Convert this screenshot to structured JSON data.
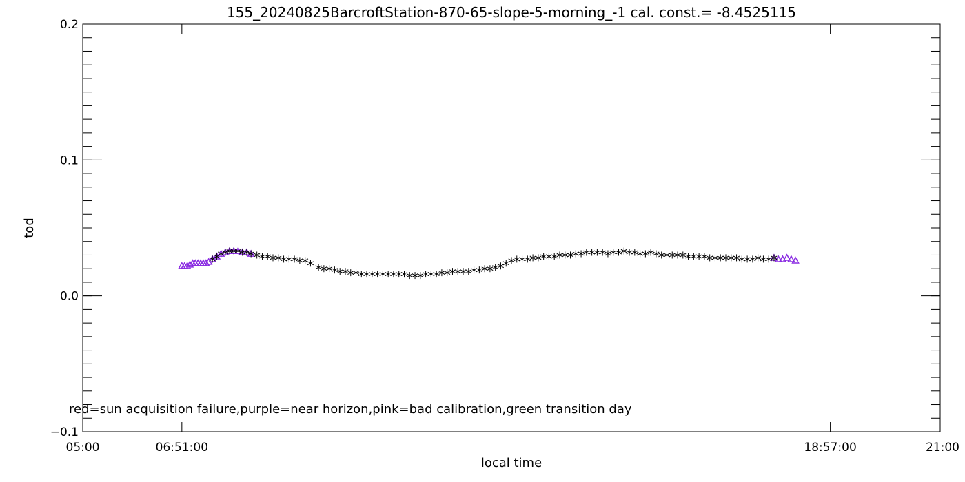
{
  "chart_data": {
    "type": "scatter",
    "title": "155_20240825BarcroftStation-870-65-slope-5-morning_-1 cal. const.= -8.4525115",
    "xlabel": "local time",
    "ylabel": "tod",
    "note": "red=sun acquisition failure,purple=near horizon,pink=bad calibration,green transition day",
    "xlim": [
      5.0,
      21.0
    ],
    "ylim": [
      -0.1,
      0.2
    ],
    "x_ticks": [
      {
        "value": 5.0,
        "label": "05:00"
      },
      {
        "value": 6.85,
        "label": "06:51:00"
      },
      {
        "value": 18.95,
        "label": "18:57:00"
      },
      {
        "value": 21.0,
        "label": "21:00"
      }
    ],
    "y_ticks": [
      {
        "value": -0.1,
        "label": "−0.1"
      },
      {
        "value": 0.0,
        "label": "0.0"
      },
      {
        "value": 0.1,
        "label": "0.1"
      },
      {
        "value": 0.2,
        "label": "0.2"
      }
    ],
    "reference_line": {
      "y": 0.03,
      "x_start": 6.85,
      "x_end": 18.95,
      "color": "#000000"
    },
    "colors": {
      "normal": "#000000",
      "near_horizon": "#8a2be2"
    },
    "series": [
      {
        "marker": "triangle",
        "color": "#8a2be2",
        "x": [
          6.85,
          6.9,
          6.95,
          7.0,
          7.05,
          7.1,
          7.15,
          7.2,
          7.25,
          7.3,
          7.35,
          7.42,
          7.5,
          7.58,
          7.66,
          7.74,
          7.82,
          7.9,
          7.98,
          8.06,
          8.14,
          17.9,
          17.98,
          18.06,
          18.14,
          18.22,
          18.3
        ],
        "y": [
          0.022,
          0.022,
          0.022,
          0.023,
          0.024,
          0.024,
          0.024,
          0.024,
          0.024,
          0.024,
          0.025,
          0.027,
          0.029,
          0.031,
          0.032,
          0.033,
          0.033,
          0.033,
          0.032,
          0.032,
          0.031,
          0.028,
          0.027,
          0.027,
          0.028,
          0.027,
          0.026
        ]
      },
      {
        "marker": "asterisk",
        "color": "#000000",
        "x": [
          7.42,
          7.5,
          7.58,
          7.66,
          7.74,
          7.82,
          7.9,
          7.98,
          8.06,
          8.14,
          8.25,
          8.35,
          8.45,
          8.55,
          8.65,
          8.75,
          8.85,
          8.95,
          9.05,
          9.15,
          9.25,
          9.4,
          9.5,
          9.6,
          9.7,
          9.8,
          9.9,
          10.0,
          10.1,
          10.2,
          10.3,
          10.4,
          10.5,
          10.6,
          10.7,
          10.8,
          10.9,
          11.0,
          11.1,
          11.2,
          11.3,
          11.4,
          11.5,
          11.6,
          11.7,
          11.8,
          11.9,
          12.0,
          12.1,
          12.2,
          12.3,
          12.4,
          12.5,
          12.6,
          12.7,
          12.8,
          12.9,
          13.0,
          13.1,
          13.2,
          13.3,
          13.4,
          13.5,
          13.6,
          13.7,
          13.8,
          13.9,
          14.0,
          14.1,
          14.2,
          14.3,
          14.4,
          14.5,
          14.6,
          14.7,
          14.8,
          14.9,
          15.0,
          15.1,
          15.2,
          15.3,
          15.4,
          15.5,
          15.6,
          15.7,
          15.8,
          15.9,
          16.0,
          16.1,
          16.2,
          16.3,
          16.4,
          16.5,
          16.6,
          16.7,
          16.8,
          16.9,
          17.0,
          17.1,
          17.2,
          17.3,
          17.4,
          17.5,
          17.6,
          17.7,
          17.8,
          17.9
        ],
        "y": [
          0.027,
          0.029,
          0.031,
          0.032,
          0.033,
          0.033,
          0.033,
          0.032,
          0.032,
          0.031,
          0.03,
          0.029,
          0.029,
          0.028,
          0.028,
          0.027,
          0.027,
          0.027,
          0.026,
          0.026,
          0.024,
          0.021,
          0.02,
          0.02,
          0.019,
          0.018,
          0.018,
          0.017,
          0.017,
          0.016,
          0.016,
          0.016,
          0.016,
          0.016,
          0.016,
          0.016,
          0.016,
          0.016,
          0.015,
          0.015,
          0.015,
          0.016,
          0.016,
          0.016,
          0.017,
          0.017,
          0.018,
          0.018,
          0.018,
          0.018,
          0.019,
          0.019,
          0.02,
          0.02,
          0.021,
          0.022,
          0.024,
          0.026,
          0.027,
          0.027,
          0.027,
          0.028,
          0.028,
          0.029,
          0.029,
          0.029,
          0.03,
          0.03,
          0.03,
          0.031,
          0.031,
          0.032,
          0.032,
          0.032,
          0.032,
          0.031,
          0.032,
          0.032,
          0.033,
          0.032,
          0.032,
          0.031,
          0.031,
          0.032,
          0.031,
          0.03,
          0.03,
          0.03,
          0.03,
          0.03,
          0.029,
          0.029,
          0.029,
          0.029,
          0.028,
          0.028,
          0.028,
          0.028,
          0.028,
          0.028,
          0.027,
          0.027,
          0.027,
          0.028,
          0.027,
          0.027,
          0.028
        ]
      }
    ]
  }
}
